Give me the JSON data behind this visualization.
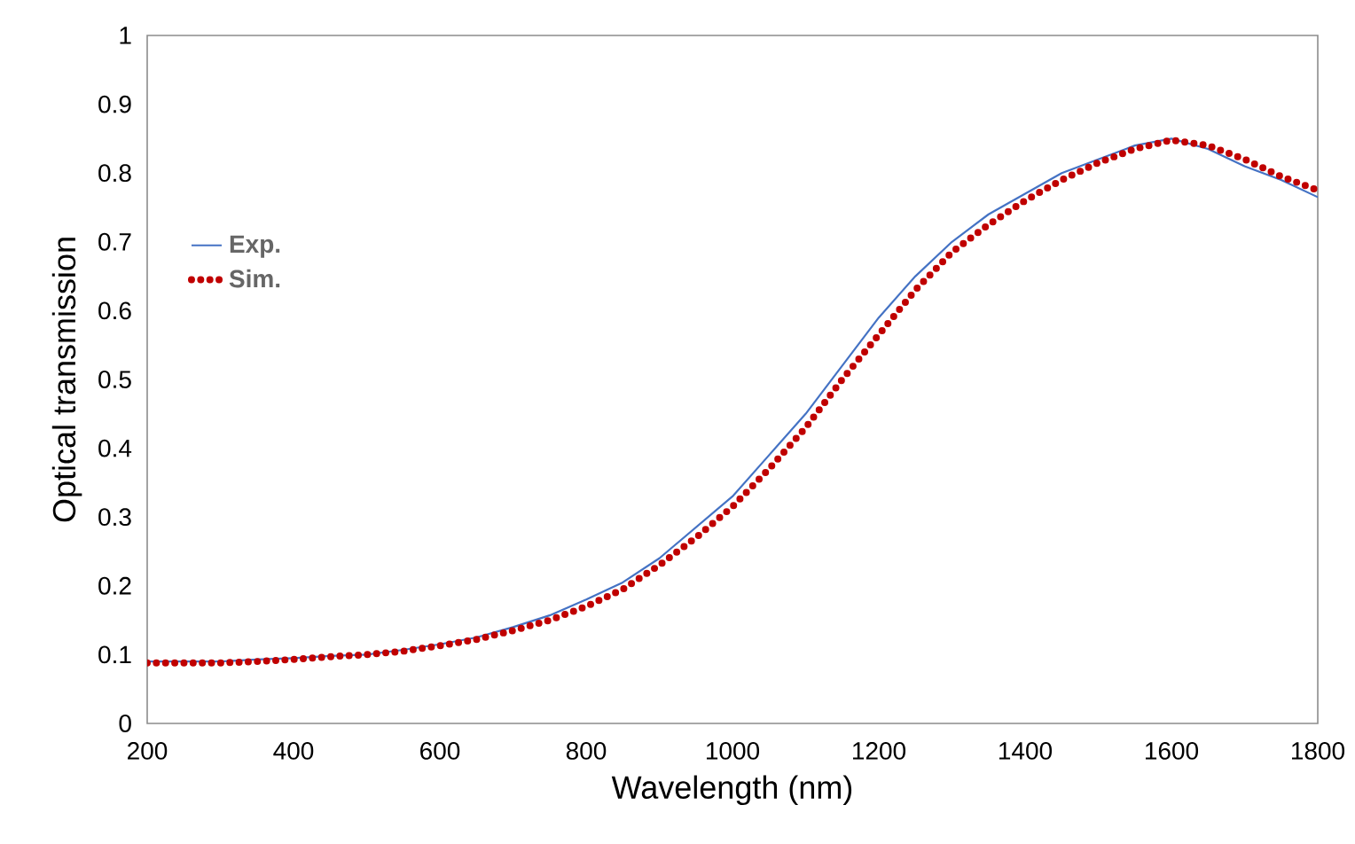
{
  "chart_data": {
    "type": "line",
    "xlabel": "Wavelength (nm)",
    "ylabel": "Optical transmission",
    "xlim": [
      200,
      1800
    ],
    "xticks": [
      200,
      400,
      600,
      800,
      1000,
      1200,
      1400,
      1600,
      1800
    ],
    "ylim": [
      0,
      1
    ],
    "yticks": [
      0,
      0.1,
      0.2,
      0.3,
      0.4,
      0.5,
      0.6,
      0.7,
      0.8,
      0.9,
      1
    ],
    "grid": false,
    "legend": "top left",
    "x": [
      200,
      250,
      300,
      350,
      400,
      450,
      500,
      550,
      600,
      650,
      700,
      750,
      800,
      850,
      900,
      950,
      1000,
      1050,
      1100,
      1150,
      1200,
      1250,
      1300,
      1350,
      1400,
      1450,
      1500,
      1550,
      1600,
      1650,
      1700,
      1750,
      1800
    ],
    "series": [
      {
        "name": "Exp.",
        "color": "#4472c4",
        "line_style": "solid",
        "values": [
          0.09,
          0.09,
          0.09,
          0.093,
          0.095,
          0.098,
          0.1,
          0.107,
          0.115,
          0.125,
          0.14,
          0.157,
          0.18,
          0.205,
          0.24,
          0.285,
          0.33,
          0.39,
          0.45,
          0.52,
          0.59,
          0.65,
          0.7,
          0.74,
          0.77,
          0.8,
          0.82,
          0.84,
          0.85,
          0.835,
          0.81,
          0.79,
          0.765
        ]
      },
      {
        "name": "Sim.",
        "color": "#c00000",
        "line_style": "dotted",
        "values": [
          0.088,
          0.088,
          0.088,
          0.09,
          0.093,
          0.097,
          0.1,
          0.105,
          0.113,
          0.122,
          0.135,
          0.15,
          0.17,
          0.195,
          0.23,
          0.27,
          0.315,
          0.37,
          0.43,
          0.5,
          0.565,
          0.63,
          0.685,
          0.725,
          0.76,
          0.79,
          0.815,
          0.835,
          0.848,
          0.84,
          0.82,
          0.795,
          0.775
        ]
      }
    ]
  }
}
